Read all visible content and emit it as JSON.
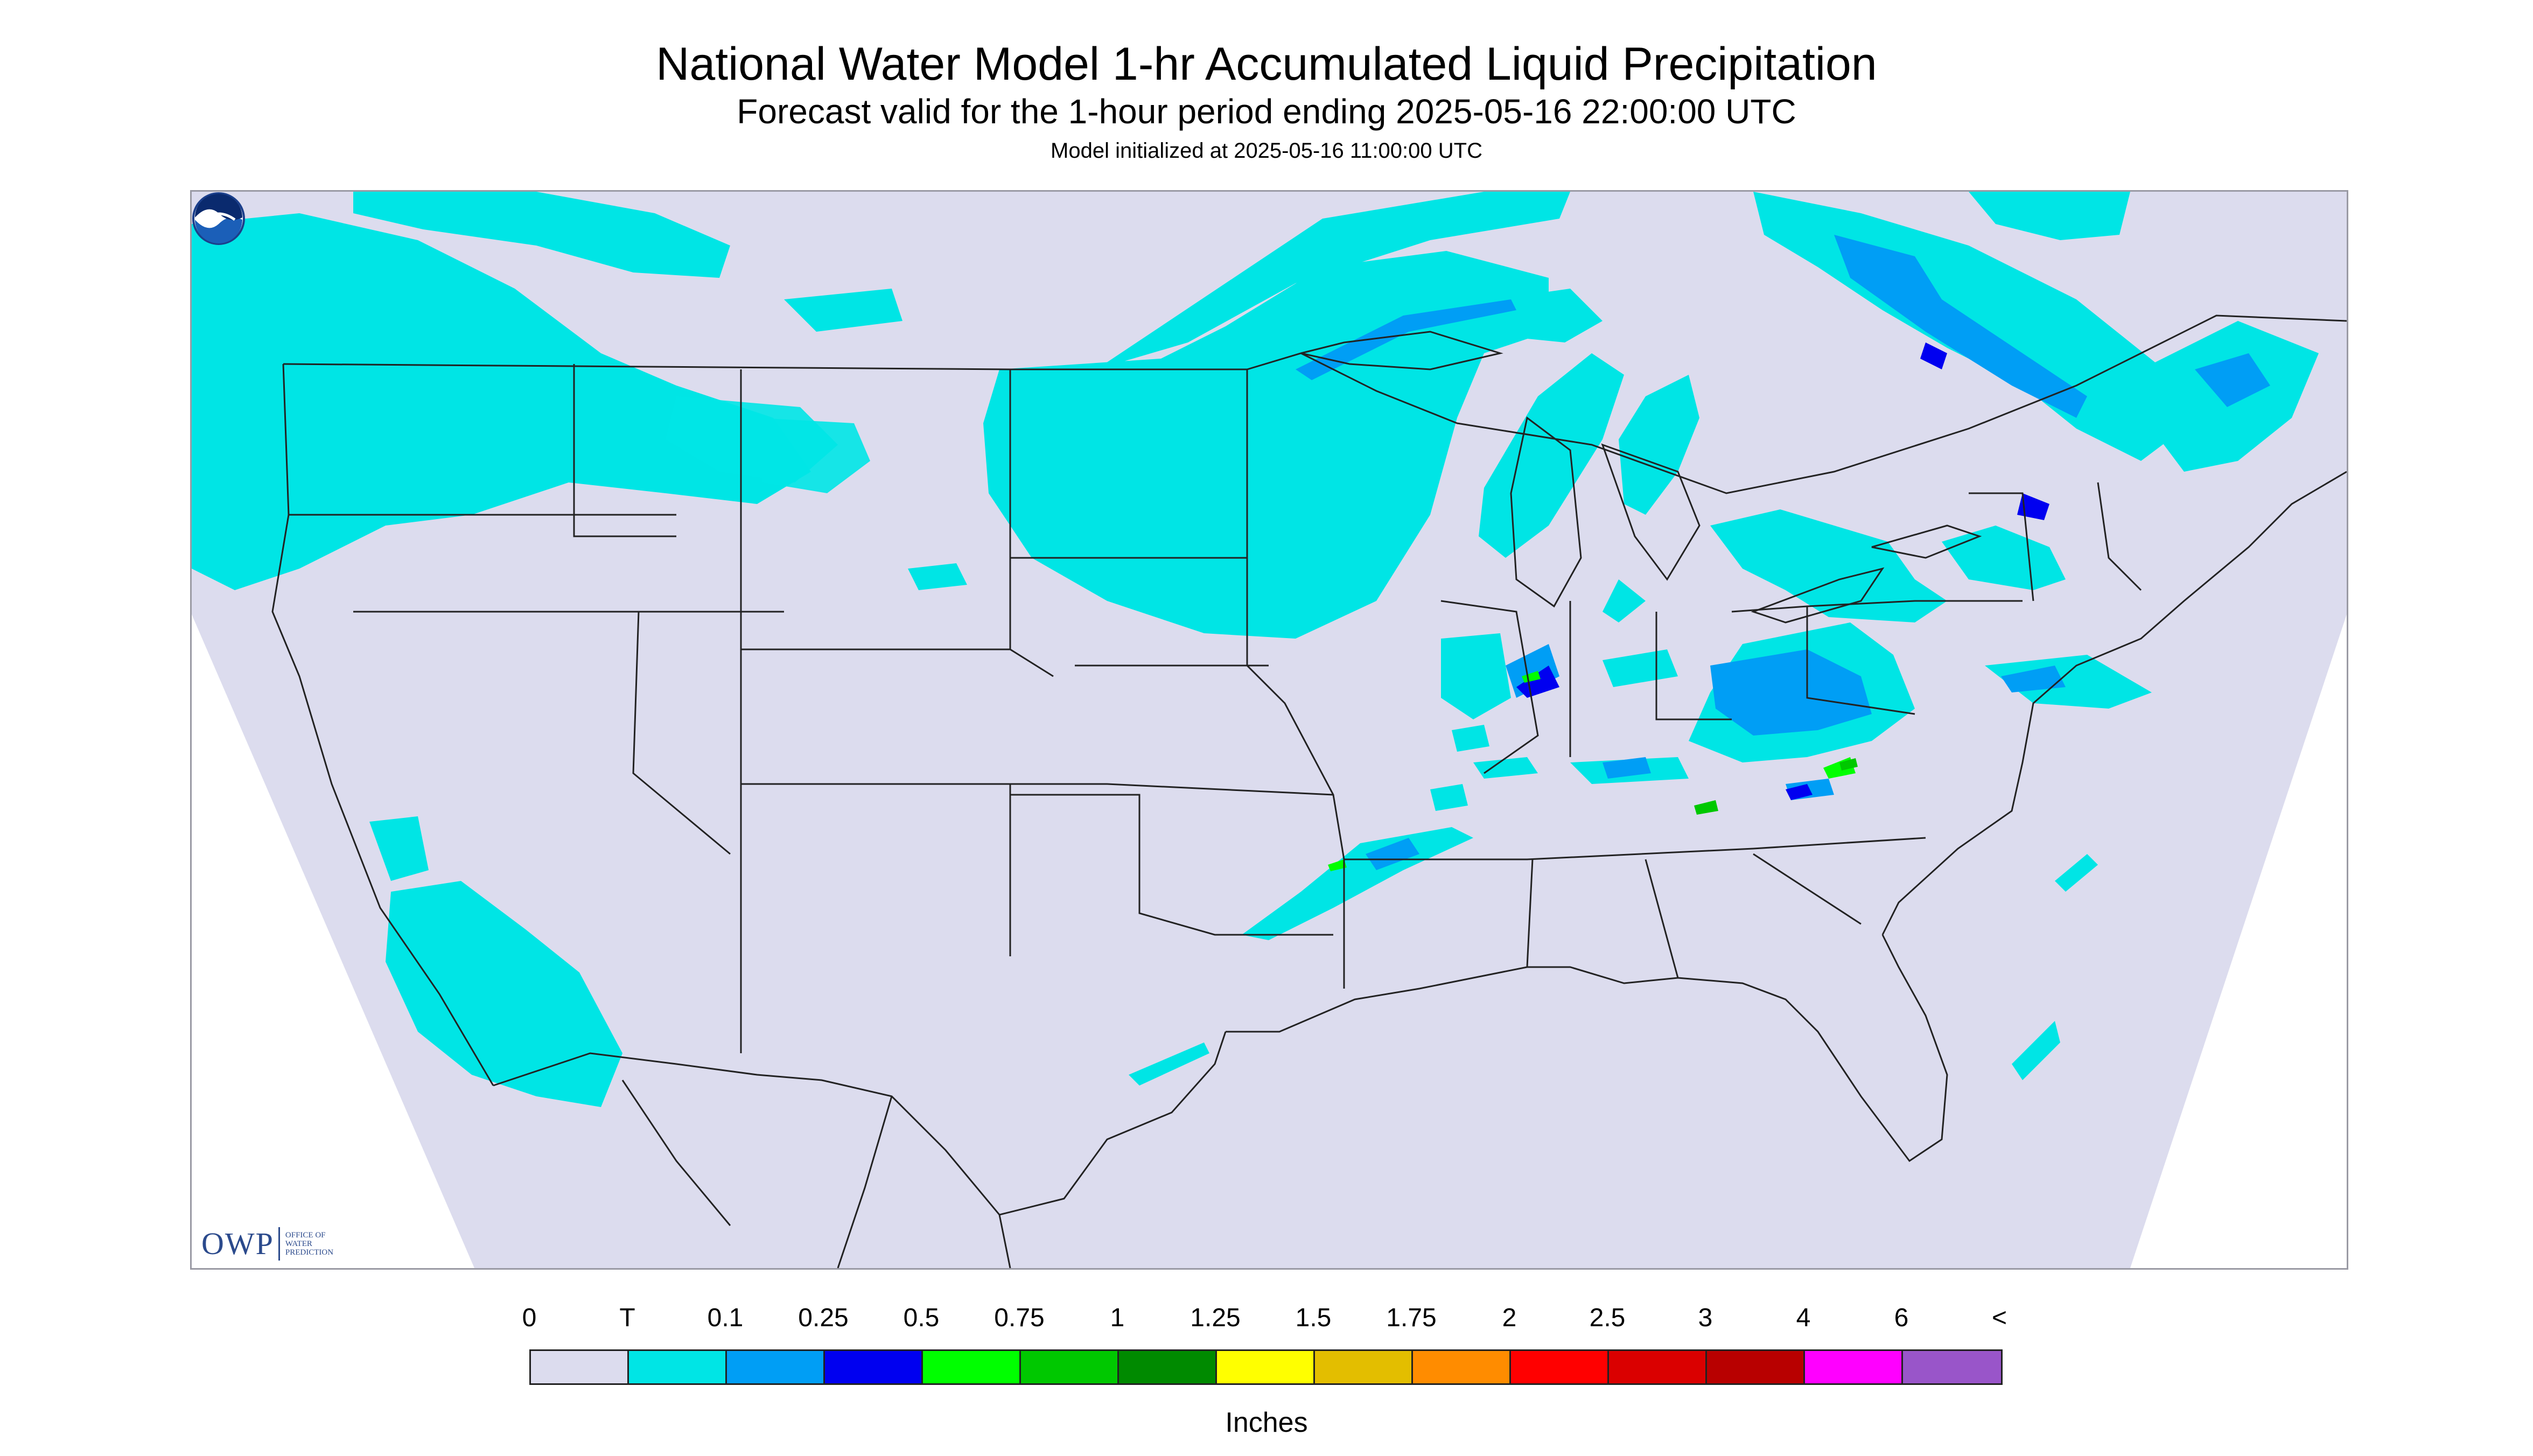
{
  "title": "National Water Model 1-hr Accumulated Liquid Precipitation",
  "subtitle": "Forecast valid for the 1-hour period ending 2025-05-16 22:00:00 UTC",
  "init_text": "Model initialized at 2025-05-16 11:00:00 UTC",
  "logos": {
    "owp_mark": "OWP",
    "owp_text": [
      "OFFICE OF",
      "WATER",
      "PREDICTION"
    ],
    "noaa": "NOAA"
  },
  "colors": {
    "background_no_precip": "#dcdcee",
    "outside_domain": "#ffffff",
    "boundaries": "#222222"
  },
  "legend": {
    "units": "Inches",
    "tick_labels": [
      "0",
      "T",
      "0.1",
      "0.25",
      "0.5",
      "0.75",
      "1",
      "1.25",
      "1.5",
      "1.75",
      "2",
      "2.5",
      "3",
      "4",
      "6",
      "<"
    ],
    "colors": [
      "#dcdcee",
      "#00e5e5",
      "#009ef5",
      "#0000f0",
      "#00ff00",
      "#00c800",
      "#008a00",
      "#ffff00",
      "#e3be00",
      "#ff8c00",
      "#ff0000",
      "#da0000",
      "#b80000",
      "#ff00ff",
      "#9955c9"
    ]
  },
  "map": {
    "region": "Continental United States",
    "precip_areas": [
      {
        "area": "Pacific Northwest",
        "class": "T"
      },
      {
        "area": "Northern Rockies (Montana, Idaho)",
        "class": "T"
      },
      {
        "area": "Upper Midwest (Dakotas, Minnesota, Wisconsin)",
        "class": "T"
      },
      {
        "area": "Lake Superior arc",
        "class": "0.1"
      },
      {
        "area": "Lower Michigan",
        "class": "T"
      },
      {
        "area": "Ontario / Quebec",
        "class": "0.25"
      },
      {
        "area": "New England",
        "class": "0.5"
      },
      {
        "area": "Illinois / Indiana",
        "class": "0.5"
      },
      {
        "area": "Ohio Valley / Mid-Atlantic",
        "class": "1"
      },
      {
        "area": "Oklahoma / Arkansas line",
        "class": "0.75"
      },
      {
        "area": "Northern California coast",
        "class": "T"
      },
      {
        "area": "Atlantic offshore",
        "class": "T"
      }
    ]
  }
}
